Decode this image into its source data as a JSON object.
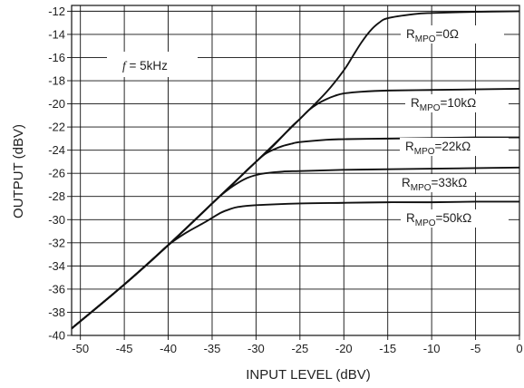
{
  "chart_data": {
    "type": "line",
    "xlabel": "INPUT LEVEL  (dBV)",
    "ylabel": "OUTPUT  (dBV)",
    "xlim": [
      -51,
      0
    ],
    "ylim": [
      -40,
      -11.5
    ],
    "grid": true,
    "x_ticks": [
      -50,
      -45,
      -40,
      -35,
      -30,
      -25,
      -20,
      -15,
      -10,
      -5,
      0
    ],
    "y_ticks": [
      -12,
      -14,
      -16,
      -18,
      -20,
      -22,
      -24,
      -26,
      -28,
      -30,
      -32,
      -34,
      -36,
      -38,
      -40
    ],
    "annotation": {
      "symbol": "f",
      "text": " = 5kHz"
    },
    "series": [
      {
        "prefix": "R",
        "sub": "MPO",
        "suffix": "=0Ω",
        "x": [
          -51,
          -45,
          -40,
          -35,
          -30,
          -25,
          -22,
          -20,
          -19,
          -18,
          -17,
          -16,
          -15,
          -12,
          -10,
          -5,
          0
        ],
        "y": [
          -39.4,
          -35.6,
          -32.2,
          -28.6,
          -25,
          -21.3,
          -19,
          -17.1,
          -15.9,
          -14.7,
          -13.7,
          -13.0,
          -12.6,
          -12.25,
          -12.15,
          -12.05,
          -12.0
        ]
      },
      {
        "prefix": "R",
        "sub": "MPO",
        "suffix": "=10kΩ",
        "x": [
          -51,
          -45,
          -40,
          -35,
          -30,
          -28,
          -26,
          -25,
          -24,
          -23,
          -22,
          -21,
          -20,
          -18,
          -15,
          -10,
          -5,
          0
        ],
        "y": [
          -39.4,
          -35.6,
          -32.2,
          -28.6,
          -25,
          -23.6,
          -22,
          -21.3,
          -20.55,
          -20,
          -19.6,
          -19.3,
          -19.1,
          -18.95,
          -18.85,
          -18.8,
          -18.75,
          -18.7
        ]
      },
      {
        "prefix": "R",
        "sub": "MPO",
        "suffix": "=22kΩ",
        "x": [
          -51,
          -45,
          -40,
          -35,
          -33,
          -31,
          -30,
          -29,
          -28,
          -27,
          -26,
          -25,
          -22,
          -20,
          -15,
          -10,
          -5,
          0
        ],
        "y": [
          -39.4,
          -35.6,
          -32.2,
          -28.6,
          -27.2,
          -25.7,
          -25,
          -24.35,
          -23.95,
          -23.65,
          -23.45,
          -23.3,
          -23.1,
          -23.05,
          -23.0,
          -22.95,
          -22.9,
          -22.9
        ]
      },
      {
        "prefix": "R",
        "sub": "MPO",
        "suffix": "=33kΩ",
        "x": [
          -51,
          -45,
          -40,
          -36,
          -35,
          -34,
          -33,
          -32,
          -31,
          -30,
          -29,
          -27,
          -25,
          -20,
          -15,
          -10,
          -5,
          0
        ],
        "y": [
          -39.4,
          -35.6,
          -32.2,
          -29.35,
          -28.6,
          -27.9,
          -27.3,
          -26.8,
          -26.4,
          -26.15,
          -26.0,
          -25.85,
          -25.8,
          -25.7,
          -25.65,
          -25.6,
          -25.55,
          -25.5
        ]
      },
      {
        "prefix": "R",
        "sub": "MPO",
        "suffix": "=50kΩ",
        "x": [
          -51,
          -45,
          -42,
          -40,
          -38,
          -36,
          -35,
          -34,
          -33,
          -32,
          -30,
          -25,
          -20,
          -15,
          -10,
          -5,
          0
        ],
        "y": [
          -39.4,
          -35.6,
          -33.6,
          -32.2,
          -31.15,
          -30.3,
          -29.85,
          -29.4,
          -29.1,
          -28.9,
          -28.75,
          -28.6,
          -28.55,
          -28.5,
          -28.5,
          -28.45,
          -28.45
        ]
      }
    ]
  }
}
